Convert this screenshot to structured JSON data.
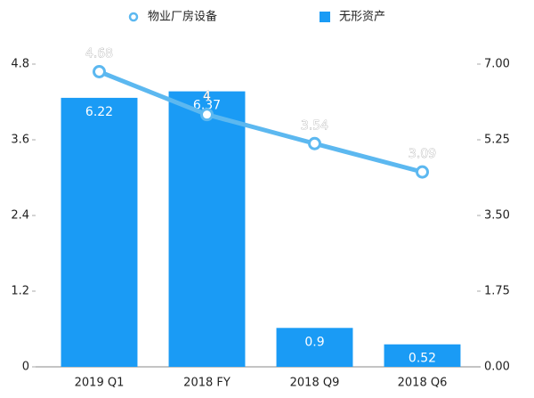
{
  "chart_data": {
    "type": "bar-line",
    "categories": [
      "2019 Q1",
      "2018 FY",
      "2018 Q9",
      "2018 Q6"
    ],
    "series": [
      {
        "name": "物业厂房设备",
        "type": "line",
        "color": "#5cb8f0",
        "values": [
          4.68,
          4,
          3.54,
          3.09
        ]
      },
      {
        "name": "无形资产",
        "type": "bar",
        "color": "#1a9bf5",
        "axis": "y2",
        "values": [
          6.22,
          6.37,
          0.9,
          0.52
        ]
      }
    ],
    "ylim": [
      0,
      4.8
    ],
    "yticks": [
      0,
      1.2,
      2.4,
      3.6,
      4.8
    ],
    "y2lim": [
      0,
      7
    ],
    "y2ticks": [
      {
        "value": 0,
        "label": "0.00"
      },
      {
        "value": 1.75,
        "label": "1.75"
      },
      {
        "value": 3.5,
        "label": "3.50"
      },
      {
        "value": 5.25,
        "label": "5.25"
      },
      {
        "value": 7,
        "label": "7.00"
      }
    ],
    "legend": "top"
  }
}
